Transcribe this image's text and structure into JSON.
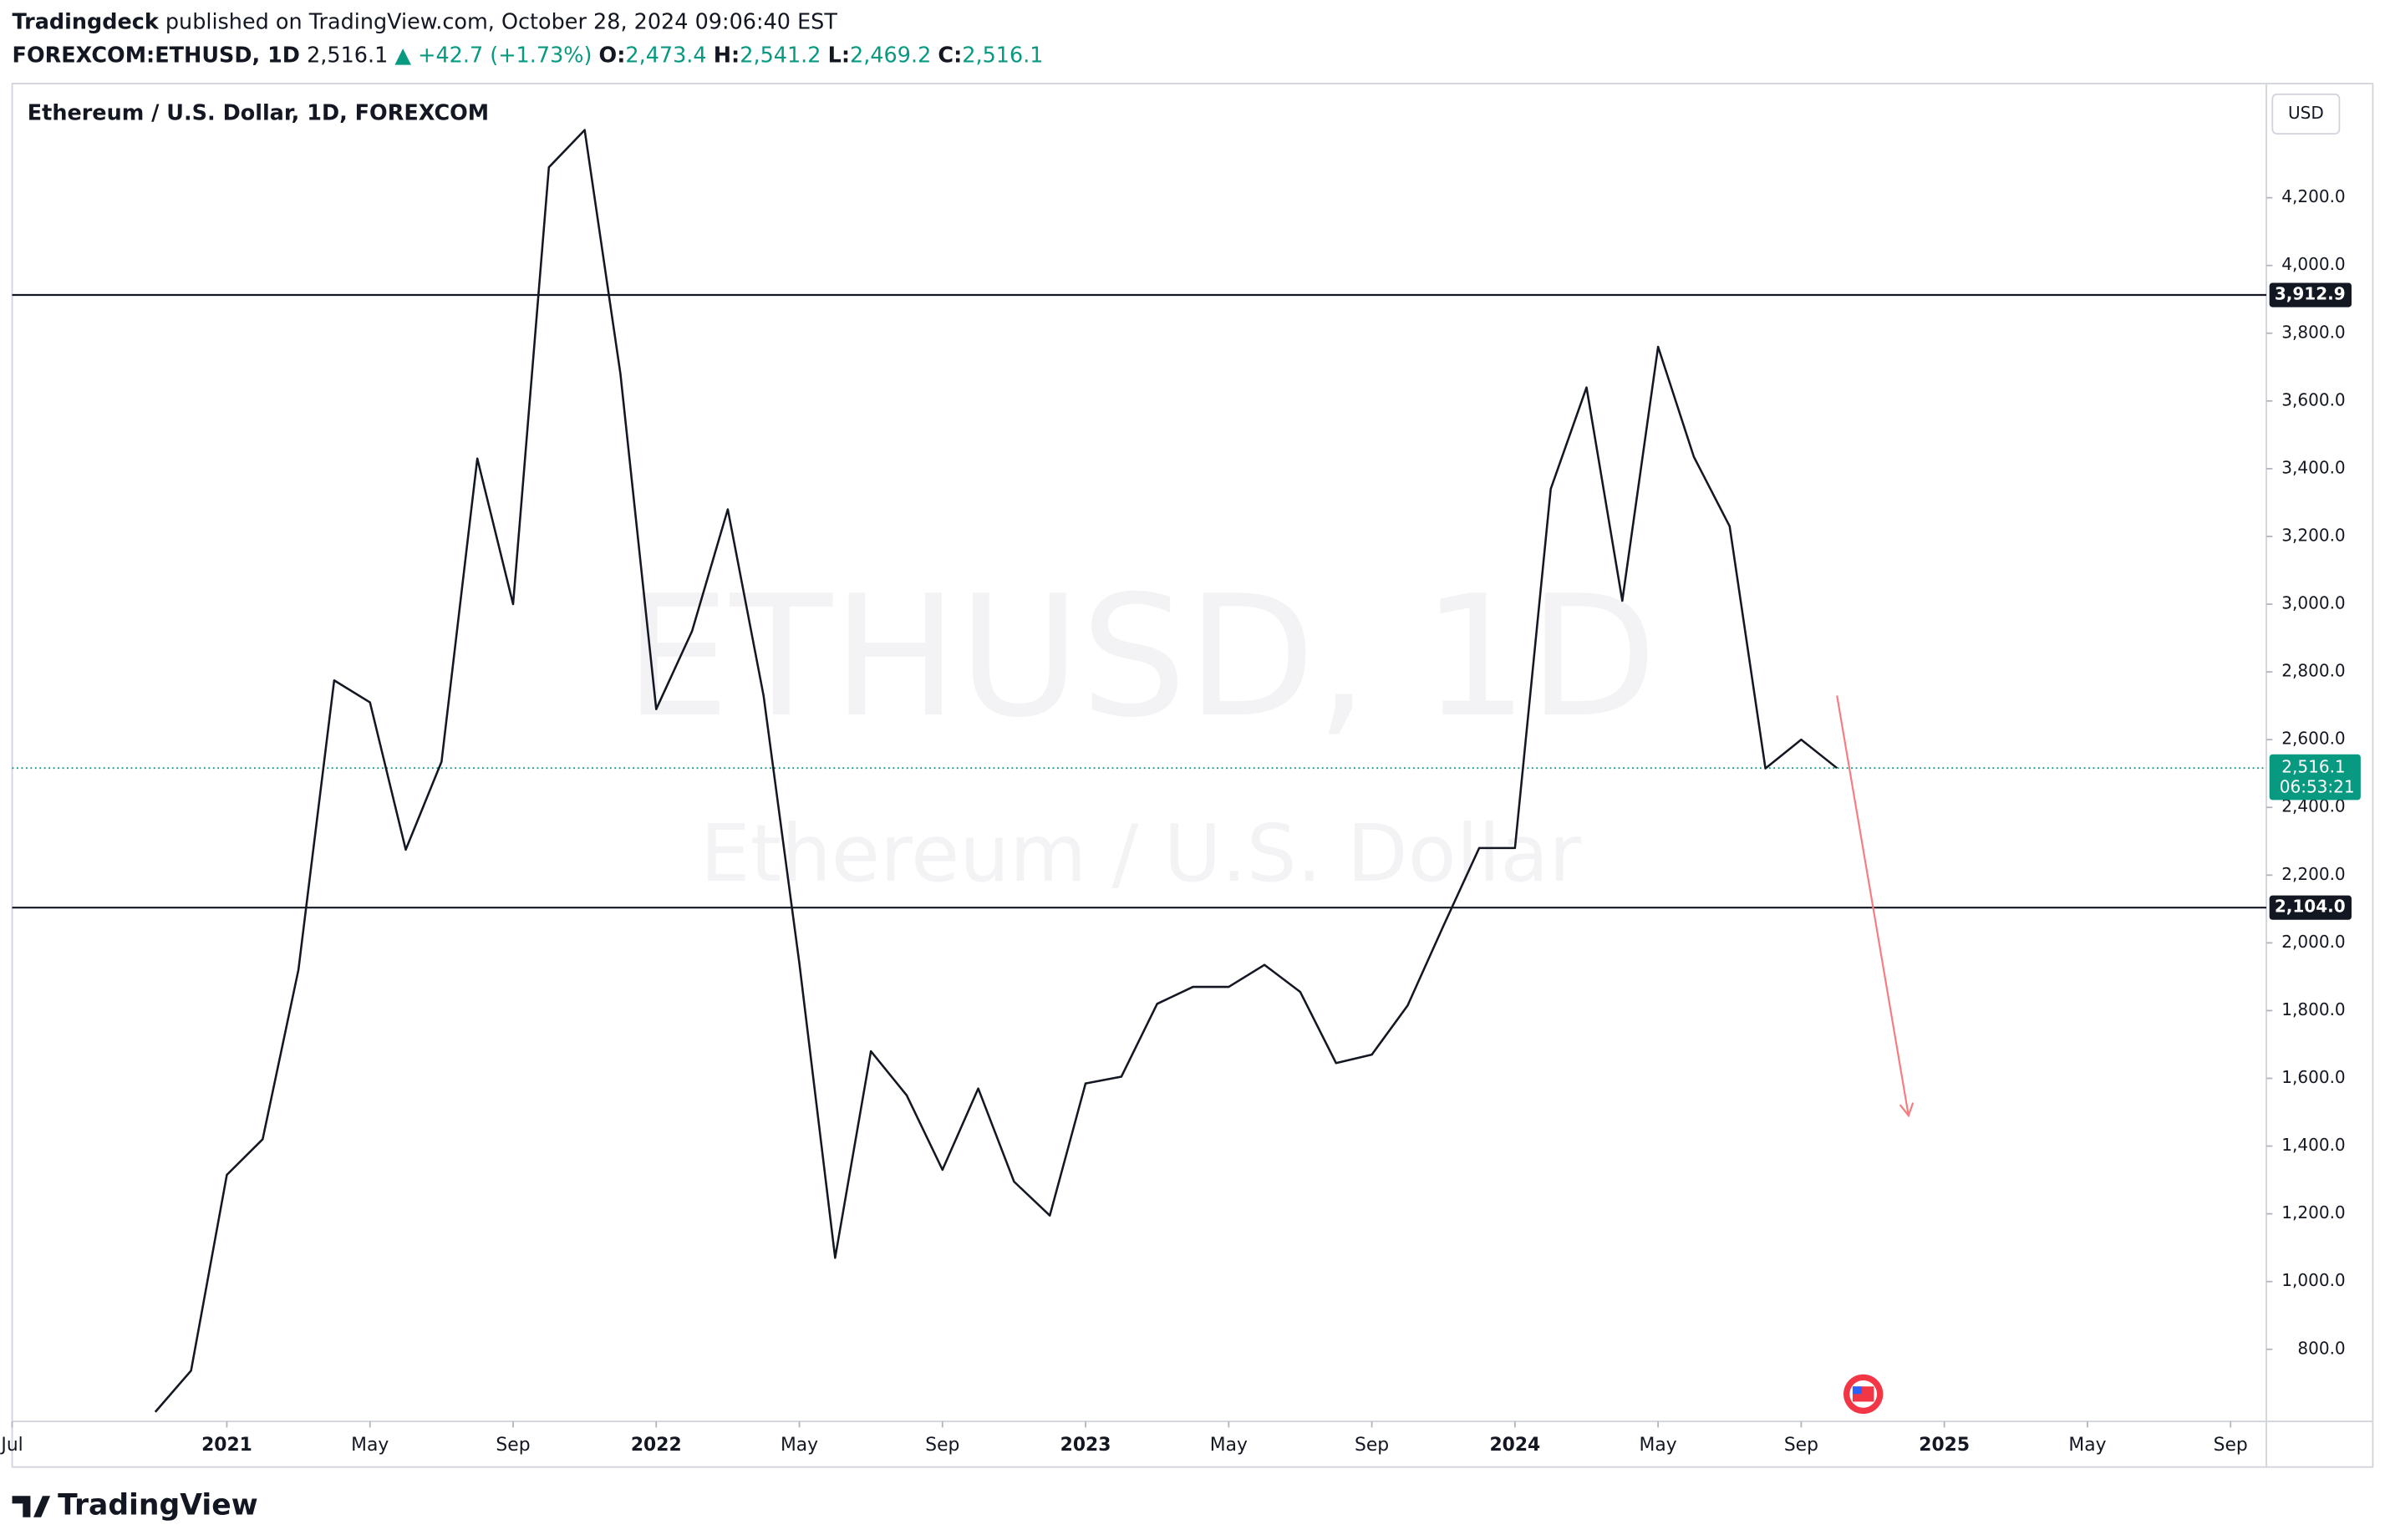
{
  "chart_data": {
    "type": "line",
    "publisher": "Tradingdeck",
    "published": "published on TradingView.com, October 28, 2024 09:06:40 EST",
    "symbol": "FOREXCOM:ETHUSD, 1D",
    "last": "2,516.1",
    "change": "▲ +42.7 (+1.73%)",
    "ohlc": [
      {
        "label": "O:",
        "value": "2,473.4"
      },
      {
        "label": "H:",
        "value": "2,541.2"
      },
      {
        "label": "L:",
        "value": "2,469.2"
      },
      {
        "label": "C:",
        "value": "2,516.1"
      }
    ],
    "title": "Ethereum / U.S. Dollar, 1D, FOREXCOM",
    "watermark": "ETHUSD, 1D",
    "watermark_sub": "Ethereum / U.S. Dollar",
    "currency": "USD",
    "brand": "TradingView",
    "color": "#131722",
    "x": [
      "2020-11",
      "2020-12",
      "2021-01",
      "2021-02",
      "2021-03",
      "2021-04",
      "2021-05",
      "2021-06",
      "2021-07",
      "2021-08",
      "2021-09",
      "2021-10",
      "2021-11",
      "2021-12",
      "2022-01",
      "2022-02",
      "2022-03",
      "2022-04",
      "2022-05",
      "2022-06",
      "2022-07",
      "2022-08",
      "2022-09",
      "2022-10",
      "2022-11",
      "2022-12",
      "2023-01",
      "2023-02",
      "2023-03",
      "2023-04",
      "2023-05",
      "2023-06",
      "2023-07",
      "2023-08",
      "2023-09",
      "2023-10",
      "2023-11",
      "2023-12",
      "2024-01",
      "2024-02",
      "2024-03",
      "2024-04",
      "2024-05",
      "2024-06",
      "2024-07",
      "2024-08",
      "2024-09",
      "2024-10"
    ],
    "values": [
      615,
      737,
      1315,
      1420,
      1920,
      2775,
      2710,
      2275,
      2535,
      3430,
      3000,
      4290,
      4400,
      3680,
      2690,
      2920,
      3280,
      2730,
      1940,
      1070,
      1680,
      1550,
      1330,
      1570,
      1295,
      1195,
      1585,
      1605,
      1820,
      1870,
      1870,
      1935,
      1855,
      1645,
      1670,
      1815,
      2050,
      2280,
      2280,
      3340,
      3640,
      3010,
      3760,
      3435,
      3230,
      2515,
      2600,
      2516.1
    ],
    "xlim": [
      "2020-07",
      "2025-10"
    ],
    "xticks": [
      {
        "value": "2020-07",
        "label": "Jul"
      },
      {
        "value": "2021-01",
        "label": "2021"
      },
      {
        "value": "2021-05",
        "label": "May"
      },
      {
        "value": "2021-09",
        "label": "Sep"
      },
      {
        "value": "2022-01",
        "label": "2022"
      },
      {
        "value": "2022-05",
        "label": "May"
      },
      {
        "value": "2022-09",
        "label": "Sep"
      },
      {
        "value": "2023-01",
        "label": "2023"
      },
      {
        "value": "2023-05",
        "label": "May"
      },
      {
        "value": "2023-09",
        "label": "Sep"
      },
      {
        "value": "2024-01",
        "label": "2024"
      },
      {
        "value": "2024-05",
        "label": "May"
      },
      {
        "value": "2024-09",
        "label": "Sep"
      },
      {
        "value": "2025-01",
        "label": "2025"
      },
      {
        "value": "2025-05",
        "label": "May"
      },
      {
        "value": "2025-09",
        "label": "Sep"
      }
    ],
    "ylim": [
      587,
      4537
    ],
    "yticks": [
      {
        "value": 800,
        "label": "800.0"
      },
      {
        "value": 1000,
        "label": "1,000.0"
      },
      {
        "value": 1200,
        "label": "1,200.0"
      },
      {
        "value": 1400,
        "label": "1,400.0"
      },
      {
        "value": 1600,
        "label": "1,600.0"
      },
      {
        "value": 1800,
        "label": "1,800.0"
      },
      {
        "value": 2000,
        "label": "2,000.0"
      },
      {
        "value": 2200,
        "label": "2,200.0"
      },
      {
        "value": 2400,
        "label": "2,400.0"
      },
      {
        "value": 2600,
        "label": "2,600.0"
      },
      {
        "value": 2800,
        "label": "2,800.0"
      },
      {
        "value": 3000,
        "label": "3,000.0"
      },
      {
        "value": 3200,
        "label": "3,200.0"
      },
      {
        "value": 3400,
        "label": "3,400.0"
      },
      {
        "value": 3600,
        "label": "3,600.0"
      },
      {
        "value": 3800,
        "label": "3,800.0"
      },
      {
        "value": 4000,
        "label": "4,000.0"
      },
      {
        "value": 4200,
        "label": "4,200.0"
      }
    ],
    "hlines": [
      {
        "value": 3912.9,
        "label": "3,912.9"
      },
      {
        "value": 2104.0,
        "label": "2,104.0"
      }
    ],
    "last_price": {
      "value": 2516.1,
      "label": "2,516.1",
      "countdown": "06:53:21"
    },
    "projection": {
      "x": [
        "2024-10",
        "2024-12"
      ],
      "values": [
        2730,
        1490
      ],
      "color": "#f77c80"
    },
    "grid": false
  }
}
